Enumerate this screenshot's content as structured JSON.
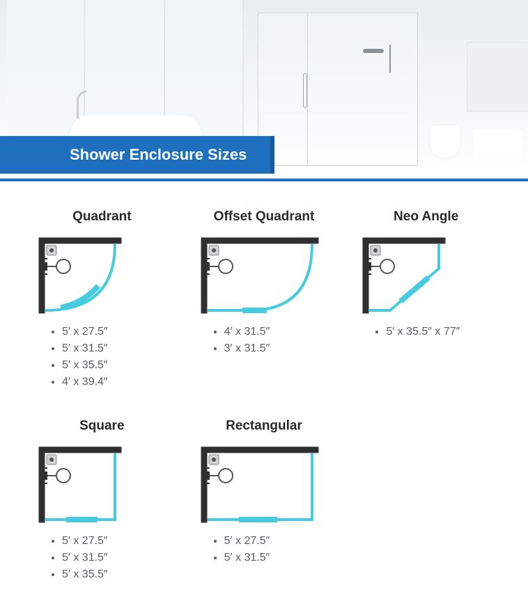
{
  "banner": {
    "title": "Shower Enclosure Sizes"
  },
  "colors": {
    "banner_bg": "#1f6fbf",
    "banner_text": "#ffffff",
    "wall": "#303030",
    "glass": "#46cbe0",
    "text_heading": "#2a2a2a",
    "text_body": "#555c61",
    "hero_gradient_top": "#e8eef2",
    "hero_gradient_bottom": "#ffffff"
  },
  "typography": {
    "heading_fontsize_pt": 14,
    "banner_fontsize_pt": 16,
    "body_fontsize_pt": 12
  },
  "enclosures": [
    {
      "id": "quadrant",
      "title": "Quadrant",
      "shape": "quadrant",
      "diagram_wide": false,
      "sizes": [
        "5′ x 27.5″",
        "5′ x 31.5″",
        "5′ x 35.5″",
        "4′ x 39.4″"
      ]
    },
    {
      "id": "offset-quadrant",
      "title": "Offset Quadrant",
      "shape": "offset-quadrant",
      "diagram_wide": true,
      "sizes": [
        "4′ x 31.5″",
        "3′ x 31.5″"
      ]
    },
    {
      "id": "neo-angle",
      "title": "Neo Angle",
      "shape": "neo-angle",
      "diagram_wide": false,
      "sizes": [
        "5′ x 35.5″ x 77″"
      ]
    },
    {
      "id": "square",
      "title": "Square",
      "shape": "square",
      "diagram_wide": false,
      "sizes": [
        "5′ x 27.5″",
        "5′ x 31.5″",
        "5′ x 35.5″"
      ]
    },
    {
      "id": "rectangular",
      "title": "Rectangular",
      "shape": "rectangular",
      "diagram_wide": true,
      "sizes": [
        "5′ x 27.5″",
        "5′ x 31.5″"
      ]
    }
  ]
}
